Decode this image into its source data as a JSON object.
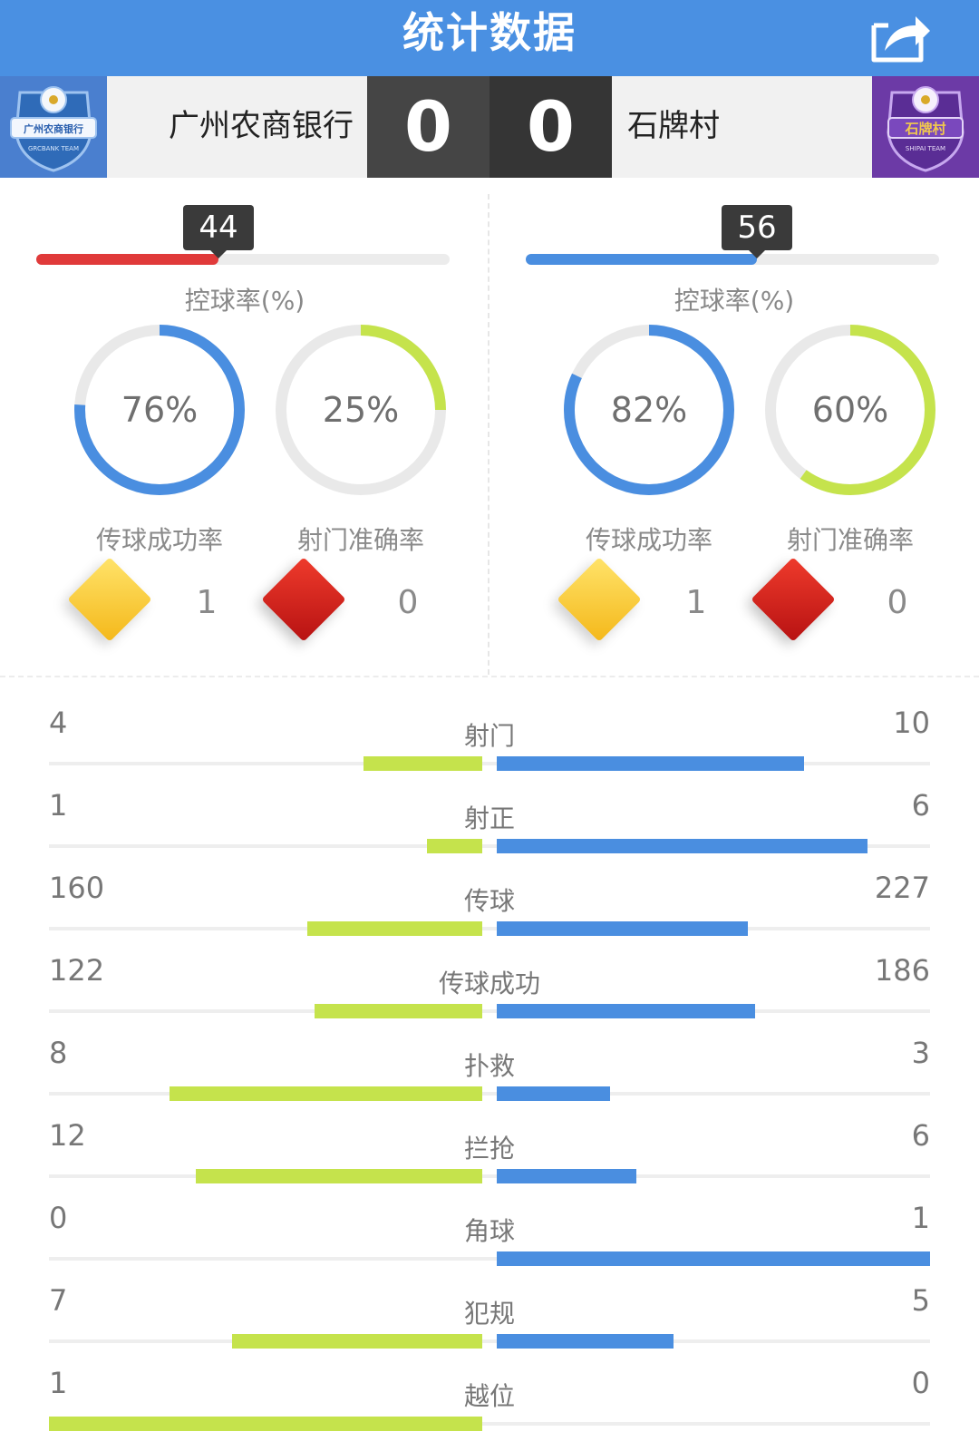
{
  "header": {
    "title": "统计数据"
  },
  "icons": {
    "share": "share-icon",
    "home_logo": "team-crest-icon",
    "away_logo": "team-crest-icon"
  },
  "colors": {
    "header_bg": "#4a90e2",
    "home_possession": "#e03a3a",
    "away_possession": "#4a8ee0",
    "pass_ring": "#4a8ee0",
    "shot_ring": "#c5e34c",
    "stat_home_bar": "#c5e34c",
    "stat_away_bar": "#4a8ee0",
    "yellow_card": "#f4c22a",
    "red_card": "#d42020"
  },
  "match": {
    "home": {
      "name": "广州农商银行",
      "score": "0",
      "logo_text": "广州农商银行",
      "logo_subtext": "GRCBANK TEAM"
    },
    "away": {
      "name": "石牌村",
      "score": "0",
      "logo_text": "石牌村",
      "logo_subtext": "SHIPAI TEAM"
    }
  },
  "panels": {
    "home": {
      "possession": 44,
      "possession_label": "控球率(%)",
      "pass_rate": {
        "value": 76,
        "text": "76%",
        "label": "传球成功率"
      },
      "shot_accuracy": {
        "value": 25,
        "text": "25%",
        "label": "射门准确率"
      },
      "yellow_cards": "1",
      "red_cards": "0"
    },
    "away": {
      "possession": 56,
      "possession_label": "控球率(%)",
      "pass_rate": {
        "value": 82,
        "text": "82%",
        "label": "传球成功率"
      },
      "shot_accuracy": {
        "value": 60,
        "text": "60%",
        "label": "射门准确率"
      },
      "yellow_cards": "1",
      "red_cards": "0"
    }
  },
  "stats": [
    {
      "label": "射门",
      "home": 4,
      "away": 10
    },
    {
      "label": "射正",
      "home": 1,
      "away": 6
    },
    {
      "label": "传球",
      "home": 160,
      "away": 227
    },
    {
      "label": "传球成功",
      "home": 122,
      "away": 186
    },
    {
      "label": "扑救",
      "home": 8,
      "away": 3
    },
    {
      "label": "拦抢",
      "home": 12,
      "away": 6
    },
    {
      "label": "角球",
      "home": 0,
      "away": 1
    },
    {
      "label": "犯规",
      "home": 7,
      "away": 5
    },
    {
      "label": "越位",
      "home": 1,
      "away": 0
    }
  ]
}
